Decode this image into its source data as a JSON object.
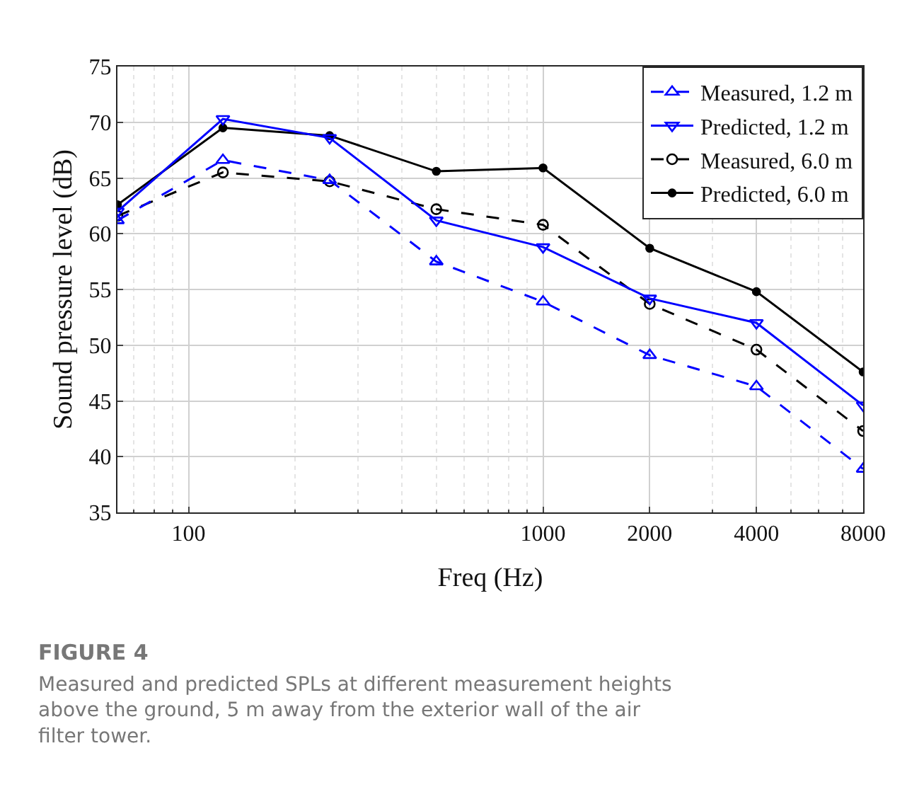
{
  "chart_data": {
    "type": "line",
    "x": [
      63,
      125,
      250,
      500,
      1000,
      2000,
      4000,
      8000
    ],
    "series": [
      {
        "name": "Measured, 1.2 m",
        "color": "#0000ff",
        "marker": "triangle",
        "line_style": "dashed",
        "values": [
          61.2,
          66.6,
          64.8,
          57.5,
          53.9,
          49.1,
          46.3,
          38.9
        ]
      },
      {
        "name": "Predicted, 1.2 m",
        "color": "#0000ff",
        "marker": "triangle",
        "line_style": "solid",
        "values": [
          62.0,
          70.3,
          68.6,
          61.2,
          58.8,
          54.2,
          52.0,
          44.6
        ]
      },
      {
        "name": "Measured, 6.0 m",
        "color": "#000000",
        "marker": "circle",
        "line_style": "dashed",
        "values": [
          61.6,
          65.5,
          64.7,
          62.2,
          60.8,
          53.7,
          49.6,
          42.3
        ]
      },
      {
        "name": "Predicted, 6.0 m",
        "color": "#000000",
        "marker": "circle",
        "line_style": "solid",
        "values": [
          62.6,
          69.5,
          68.8,
          65.6,
          65.9,
          58.7,
          54.8,
          47.6
        ]
      }
    ],
    "xlabel": "Freq (Hz)",
    "ylabel": "Sound pressure level (dB)",
    "log": "x",
    "xlim": [
      63,
      8000
    ],
    "xticks": [
      100,
      1000,
      2000,
      4000,
      8000
    ],
    "ylim": [
      35,
      75
    ],
    "yticks": [
      35,
      40,
      45,
      50,
      55,
      60,
      65,
      70,
      75
    ],
    "grid": true,
    "legend": "top right",
    "annotations": [
      "FIGURE 4",
      "Measured and predicted SPLs at different measurement heights above the ground, 5 m away from the exterior wall of the air filter tower."
    ]
  }
}
